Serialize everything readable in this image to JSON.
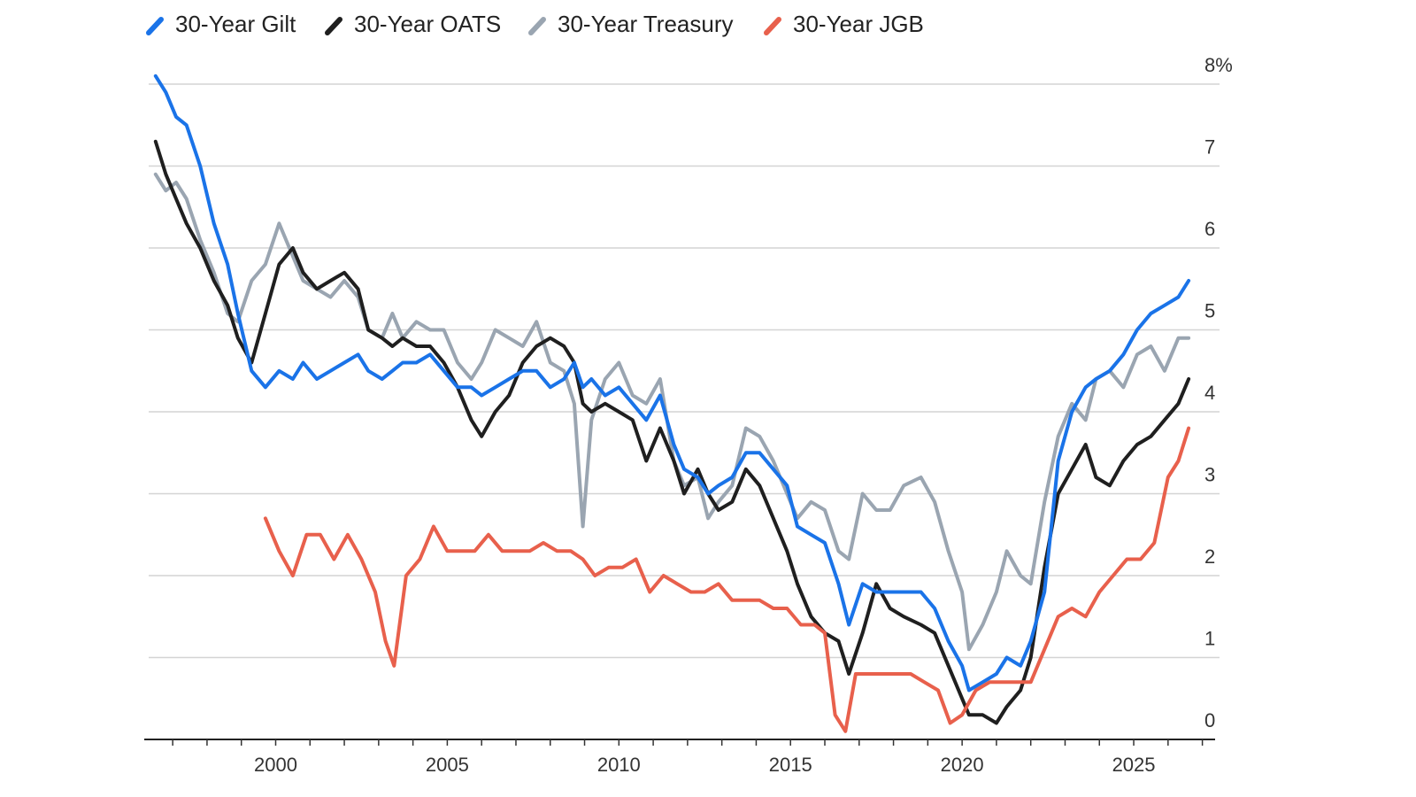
{
  "chart_data": {
    "type": "line",
    "title": "",
    "xlabel": "",
    "ylabel": "",
    "y_unit_suffix": "%",
    "xlim": [
      1996.3,
      2027.5
    ],
    "ylim": [
      0,
      8
    ],
    "grid": "horizontal",
    "legend": "top-left",
    "yticks": [
      {
        "value": 8,
        "label": "8%"
      },
      {
        "value": 7,
        "label": "7"
      },
      {
        "value": 6,
        "label": "6"
      },
      {
        "value": 5,
        "label": "5"
      },
      {
        "value": 4,
        "label": "4"
      },
      {
        "value": 3,
        "label": "3"
      },
      {
        "value": 2,
        "label": "2"
      },
      {
        "value": 1,
        "label": "1"
      },
      {
        "value": 0,
        "label": "0"
      }
    ],
    "xticks": [
      {
        "value": 2000,
        "label": "2000"
      },
      {
        "value": 2005,
        "label": "2005"
      },
      {
        "value": 2010,
        "label": "2010"
      },
      {
        "value": 2015,
        "label": "2015"
      },
      {
        "value": 2020,
        "label": "2020"
      },
      {
        "value": 2025,
        "label": "2025"
      }
    ],
    "series": [
      {
        "name": "30-Year Treasury",
        "color": "#9aa5b1",
        "x": [
          1996.5,
          1996.8,
          1997.1,
          1997.4,
          1997.8,
          1998.2,
          1998.6,
          1998.9,
          1999.3,
          1999.7,
          2000.1,
          2000.5,
          2000.8,
          2001.2,
          2001.6,
          2002.0,
          2002.4,
          2002.7,
          2003.1,
          2003.4,
          2003.7,
          2004.1,
          2004.5,
          2004.9,
          2005.3,
          2005.7,
          2006.0,
          2006.4,
          2006.8,
          2007.2,
          2007.6,
          2008.0,
          2008.4,
          2008.7,
          2008.95,
          2009.2,
          2009.6,
          2010.0,
          2010.4,
          2010.8,
          2011.2,
          2011.6,
          2011.9,
          2012.3,
          2012.6,
          2012.9,
          2013.3,
          2013.7,
          2014.1,
          2014.5,
          2014.9,
          2015.2,
          2015.6,
          2016.0,
          2016.4,
          2016.7,
          2017.1,
          2017.5,
          2017.9,
          2018.3,
          2018.8,
          2019.2,
          2019.6,
          2020.0,
          2020.2,
          2020.6,
          2021.0,
          2021.3,
          2021.7,
          2022.0,
          2022.4,
          2022.8,
          2023.2,
          2023.6,
          2023.9,
          2024.3,
          2024.7,
          2025.1,
          2025.5,
          2025.9,
          2026.3,
          2026.6
        ],
        "y": [
          6.9,
          6.7,
          6.8,
          6.6,
          6.1,
          5.7,
          5.2,
          5.1,
          5.6,
          5.8,
          6.3,
          5.9,
          5.6,
          5.5,
          5.4,
          5.6,
          5.4,
          5.0,
          4.9,
          5.2,
          4.9,
          5.1,
          5.0,
          5.0,
          4.6,
          4.4,
          4.6,
          5.0,
          4.9,
          4.8,
          5.1,
          4.6,
          4.5,
          4.1,
          2.6,
          3.9,
          4.4,
          4.6,
          4.2,
          4.1,
          4.4,
          3.4,
          3.1,
          3.2,
          2.7,
          2.9,
          3.1,
          3.8,
          3.7,
          3.4,
          3.0,
          2.7,
          2.9,
          2.8,
          2.3,
          2.2,
          3.0,
          2.8,
          2.8,
          3.1,
          3.2,
          2.9,
          2.3,
          1.8,
          1.1,
          1.4,
          1.8,
          2.3,
          2.0,
          1.9,
          2.9,
          3.7,
          4.1,
          3.9,
          4.4,
          4.5,
          4.3,
          4.7,
          4.8,
          4.5,
          4.9,
          4.9
        ]
      },
      {
        "name": "30-Year OATS",
        "color": "#1f1f1f",
        "x": [
          1996.5,
          1996.8,
          1997.1,
          1997.4,
          1997.8,
          1998.2,
          1998.6,
          1998.9,
          1999.3,
          1999.7,
          2000.1,
          2000.5,
          2000.8,
          2001.2,
          2001.6,
          2002.0,
          2002.4,
          2002.7,
          2003.1,
          2003.4,
          2003.7,
          2004.1,
          2004.5,
          2004.9,
          2005.3,
          2005.7,
          2006.0,
          2006.4,
          2006.8,
          2007.2,
          2007.6,
          2008.0,
          2008.4,
          2008.7,
          2008.95,
          2009.2,
          2009.6,
          2010.0,
          2010.4,
          2010.8,
          2011.2,
          2011.6,
          2011.9,
          2012.3,
          2012.6,
          2012.9,
          2013.3,
          2013.7,
          2014.1,
          2014.5,
          2014.9,
          2015.2,
          2015.6,
          2016.0,
          2016.4,
          2016.7,
          2017.1,
          2017.5,
          2017.9,
          2018.3,
          2018.8,
          2019.2,
          2019.6,
          2020.0,
          2020.2,
          2020.6,
          2021.0,
          2021.3,
          2021.7,
          2022.0,
          2022.4,
          2022.8,
          2023.2,
          2023.6,
          2023.9,
          2024.3,
          2024.7,
          2025.1,
          2025.5,
          2025.9,
          2026.3,
          2026.6
        ],
        "y": [
          7.3,
          6.9,
          6.6,
          6.3,
          6.0,
          5.6,
          5.3,
          4.9,
          4.6,
          5.2,
          5.8,
          6.0,
          5.7,
          5.5,
          5.6,
          5.7,
          5.5,
          5.0,
          4.9,
          4.8,
          4.9,
          4.8,
          4.8,
          4.6,
          4.3,
          3.9,
          3.7,
          4.0,
          4.2,
          4.6,
          4.8,
          4.9,
          4.8,
          4.6,
          4.1,
          4.0,
          4.1,
          4.0,
          3.9,
          3.4,
          3.8,
          3.4,
          3.0,
          3.3,
          3.0,
          2.8,
          2.9,
          3.3,
          3.1,
          2.7,
          2.3,
          1.9,
          1.5,
          1.3,
          1.2,
          0.8,
          1.3,
          1.9,
          1.6,
          1.5,
          1.4,
          1.3,
          0.9,
          0.5,
          0.3,
          0.3,
          0.2,
          0.4,
          0.6,
          1.0,
          2.1,
          3.0,
          3.3,
          3.6,
          3.2,
          3.1,
          3.4,
          3.6,
          3.7,
          3.9,
          4.1,
          4.4
        ]
      },
      {
        "name": "30-Year Gilt",
        "color": "#1a73e8",
        "x": [
          1996.5,
          1996.8,
          1997.1,
          1997.4,
          1997.8,
          1998.2,
          1998.6,
          1998.9,
          1999.3,
          1999.7,
          2000.1,
          2000.5,
          2000.8,
          2001.2,
          2001.6,
          2002.0,
          2002.4,
          2002.7,
          2003.1,
          2003.4,
          2003.7,
          2004.1,
          2004.5,
          2004.9,
          2005.3,
          2005.7,
          2006.0,
          2006.4,
          2006.8,
          2007.2,
          2007.6,
          2008.0,
          2008.4,
          2008.7,
          2008.95,
          2009.2,
          2009.6,
          2010.0,
          2010.4,
          2010.8,
          2011.2,
          2011.6,
          2011.9,
          2012.3,
          2012.6,
          2012.9,
          2013.3,
          2013.7,
          2014.1,
          2014.5,
          2014.9,
          2015.2,
          2015.6,
          2016.0,
          2016.4,
          2016.7,
          2017.1,
          2017.5,
          2017.9,
          2018.3,
          2018.8,
          2019.2,
          2019.6,
          2020.0,
          2020.2,
          2020.6,
          2021.0,
          2021.3,
          2021.7,
          2022.0,
          2022.4,
          2022.8,
          2023.2,
          2023.6,
          2023.9,
          2024.3,
          2024.7,
          2025.1,
          2025.5,
          2025.9,
          2026.3,
          2026.6
        ],
        "y": [
          8.1,
          7.9,
          7.6,
          7.5,
          7.0,
          6.3,
          5.8,
          5.2,
          4.5,
          4.3,
          4.5,
          4.4,
          4.6,
          4.4,
          4.5,
          4.6,
          4.7,
          4.5,
          4.4,
          4.5,
          4.6,
          4.6,
          4.7,
          4.5,
          4.3,
          4.3,
          4.2,
          4.3,
          4.4,
          4.5,
          4.5,
          4.3,
          4.4,
          4.6,
          4.3,
          4.4,
          4.2,
          4.3,
          4.1,
          3.9,
          4.2,
          3.6,
          3.3,
          3.2,
          3.0,
          3.1,
          3.2,
          3.5,
          3.5,
          3.3,
          3.1,
          2.6,
          2.5,
          2.4,
          1.9,
          1.4,
          1.9,
          1.8,
          1.8,
          1.8,
          1.8,
          1.6,
          1.2,
          0.9,
          0.6,
          0.7,
          0.8,
          1.0,
          0.9,
          1.2,
          1.8,
          3.4,
          4.0,
          4.3,
          4.4,
          4.5,
          4.7,
          5.0,
          5.2,
          5.3,
          5.4,
          5.6
        ]
      },
      {
        "name": "30-Year JGB",
        "color": "#e8604c",
        "x": [
          1999.7,
          2000.1,
          2000.5,
          2000.9,
          2001.3,
          2001.7,
          2002.1,
          2002.5,
          2002.9,
          2003.2,
          2003.45,
          2003.8,
          2004.2,
          2004.6,
          2005.0,
          2005.4,
          2005.8,
          2006.2,
          2006.6,
          2007.0,
          2007.4,
          2007.8,
          2008.2,
          2008.6,
          2008.95,
          2009.3,
          2009.7,
          2010.1,
          2010.5,
          2010.9,
          2011.3,
          2011.7,
          2012.1,
          2012.5,
          2012.9,
          2013.3,
          2013.7,
          2014.1,
          2014.5,
          2014.9,
          2015.3,
          2015.7,
          2016.0,
          2016.3,
          2016.6,
          2016.9,
          2017.3,
          2017.7,
          2018.1,
          2018.5,
          2018.9,
          2019.3,
          2019.65,
          2020.0,
          2020.4,
          2020.8,
          2021.2,
          2021.6,
          2022.0,
          2022.4,
          2022.8,
          2023.2,
          2023.6,
          2024.0,
          2024.4,
          2024.8,
          2025.2,
          2025.6,
          2026.0,
          2026.3,
          2026.6
        ],
        "y": [
          2.7,
          2.3,
          2.0,
          2.5,
          2.5,
          2.2,
          2.5,
          2.2,
          1.8,
          1.2,
          0.9,
          2.0,
          2.2,
          2.6,
          2.3,
          2.3,
          2.3,
          2.5,
          2.3,
          2.3,
          2.3,
          2.4,
          2.3,
          2.3,
          2.2,
          2.0,
          2.1,
          2.1,
          2.2,
          1.8,
          2.0,
          1.9,
          1.8,
          1.8,
          1.9,
          1.7,
          1.7,
          1.7,
          1.6,
          1.6,
          1.4,
          1.4,
          1.3,
          0.3,
          0.1,
          0.8,
          0.8,
          0.8,
          0.8,
          0.8,
          0.7,
          0.6,
          0.2,
          0.3,
          0.6,
          0.7,
          0.7,
          0.7,
          0.7,
          1.1,
          1.5,
          1.6,
          1.5,
          1.8,
          2.0,
          2.2,
          2.2,
          2.4,
          3.2,
          3.4,
          3.8
        ]
      }
    ]
  }
}
